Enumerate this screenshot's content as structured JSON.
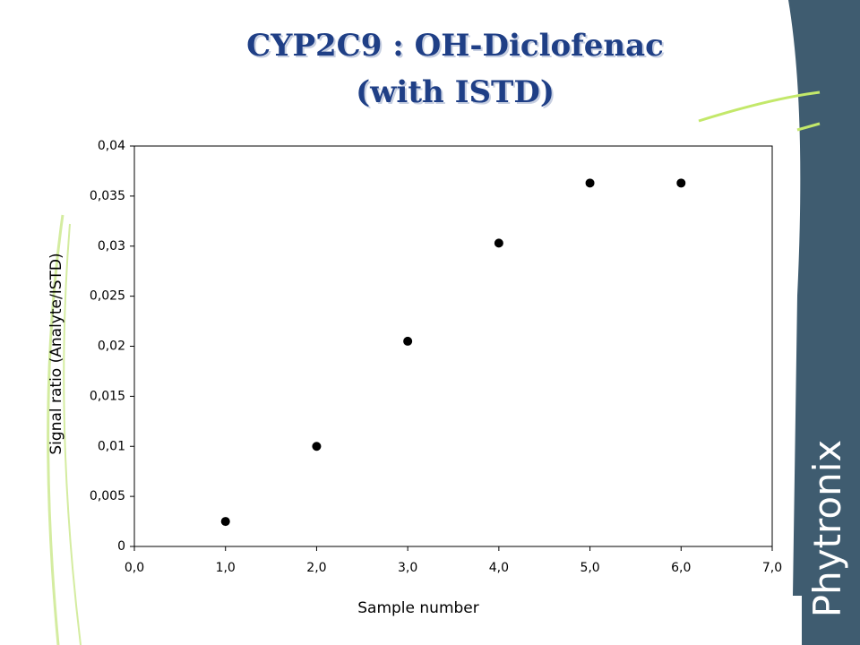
{
  "chart_data": {
    "type": "scatter",
    "title": "CYP2C9 : OH-Diclofenac",
    "subtitle": "(with ISTD)",
    "x_label": "Sample number",
    "y_label": "Signal ratio (Analyte/ISTD)",
    "x": [
      1,
      2,
      3,
      4,
      5,
      6
    ],
    "values": [
      0.0025,
      0.01,
      0.0205,
      0.0303,
      0.0363,
      0.0363
    ],
    "color": "#000000",
    "xlim": [
      0,
      7
    ],
    "xticks": [
      {
        "value": 0,
        "label": "0,0"
      },
      {
        "value": 1,
        "label": "1,0"
      },
      {
        "value": 2,
        "label": "2,0"
      },
      {
        "value": 3,
        "label": "3,0"
      },
      {
        "value": 4,
        "label": "4,0"
      },
      {
        "value": 5,
        "label": "5,0"
      },
      {
        "value": 6,
        "label": "6,0"
      },
      {
        "value": 7,
        "label": "7,0"
      }
    ],
    "ylim": [
      0,
      0.04
    ],
    "yticks": [
      0,
      {
        "value": 0.005,
        "label": "0,005"
      },
      {
        "value": 0.01,
        "label": "0,01"
      },
      {
        "value": 0.015,
        "label": "0,015"
      },
      {
        "value": 0.02,
        "label": "0,02"
      },
      {
        "value": 0.025,
        "label": "0,025"
      },
      {
        "value": 0.03,
        "label": "0,03"
      },
      {
        "value": 0.035,
        "label": "0,035"
      },
      {
        "value": 0.04,
        "label": "0,04"
      }
    ],
    "grid": false
  },
  "brand": "Phytronix"
}
